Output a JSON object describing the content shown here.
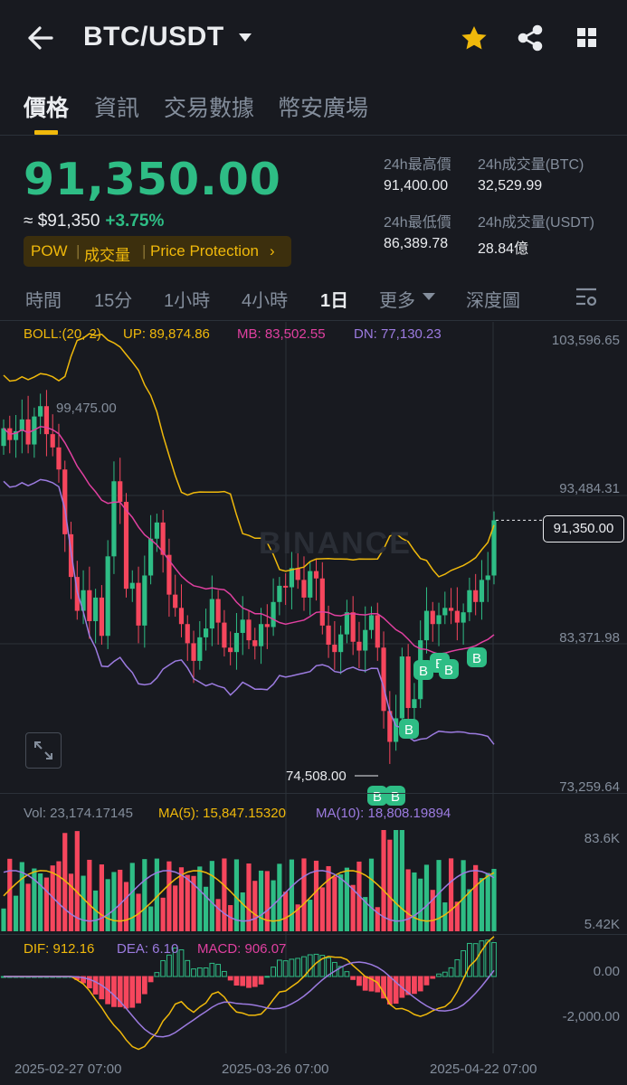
{
  "header": {
    "title": "BTC/USDT",
    "icons": [
      "back-arrow-icon",
      "dropdown-triangle-icon",
      "star-icon",
      "share-icon",
      "grid-icon"
    ]
  },
  "tabs": [
    {
      "label": "價格",
      "active": true
    },
    {
      "label": "資訊",
      "active": false
    },
    {
      "label": "交易數據",
      "active": false
    },
    {
      "label": "幣安廣場",
      "active": false
    }
  ],
  "price": {
    "last": "91,350.00",
    "approx": "≈ $91,350",
    "change": "+3.75%"
  },
  "tags": [
    "POW",
    "成交量",
    "Price Protection"
  ],
  "stats": {
    "high_label": "24h最高價",
    "high": "91,400.00",
    "vol_btc_label": "24h成交量(BTC)",
    "vol_btc": "32,529.99",
    "low_label": "24h最低價",
    "low": "86,389.78",
    "vol_usdt_label": "24h成交量(USDT)",
    "vol_usdt": "28.84億"
  },
  "intervals": {
    "time": "時間",
    "m15": "15分",
    "h1": "1小時",
    "h4": "4小時",
    "d1": "1日",
    "more": "更多",
    "depth": "深度圖"
  },
  "boll": {
    "label": "BOLL:(20, 2)",
    "up": "UP: 89,874.86",
    "mb": "MB: 83,502.55",
    "dn": "DN: 77,130.23"
  },
  "price_axis": {
    "top": "103,596.65",
    "mid1": "93,484.31",
    "mid2": "83,371.98",
    "bottom": "73,259.64"
  },
  "chart_labels": {
    "current_price": "91,350.00",
    "high_marker": "99,475.00",
    "low_marker": "74,508.00",
    "watermark": "BINANCE",
    "buy_marker": "B"
  },
  "volume": {
    "vol": "Vol: 23,174.17145",
    "ma5": "MA(5): 15,847.15320",
    "ma10": "MA(10): 18,808.19894",
    "axis_top": "83.6K",
    "axis_bottom": "5.42K"
  },
  "macd": {
    "dif": "DIF: 912.16",
    "dea": "DEA: 6.10",
    "macd": "MACD: 906.07",
    "axis_top": "0.00",
    "axis_bottom": "-2,000.00"
  },
  "dates": [
    "2025-02-27 07:00",
    "2025-03-26 07:00",
    "2025-04-22 07:00"
  ],
  "colors": {
    "up": "#2ebd85",
    "down": "#f6465d",
    "accent": "#f0b90b",
    "boll_up": "#f0b90b",
    "boll_mb": "#e040a0",
    "boll_dn": "#9c7be0"
  }
}
